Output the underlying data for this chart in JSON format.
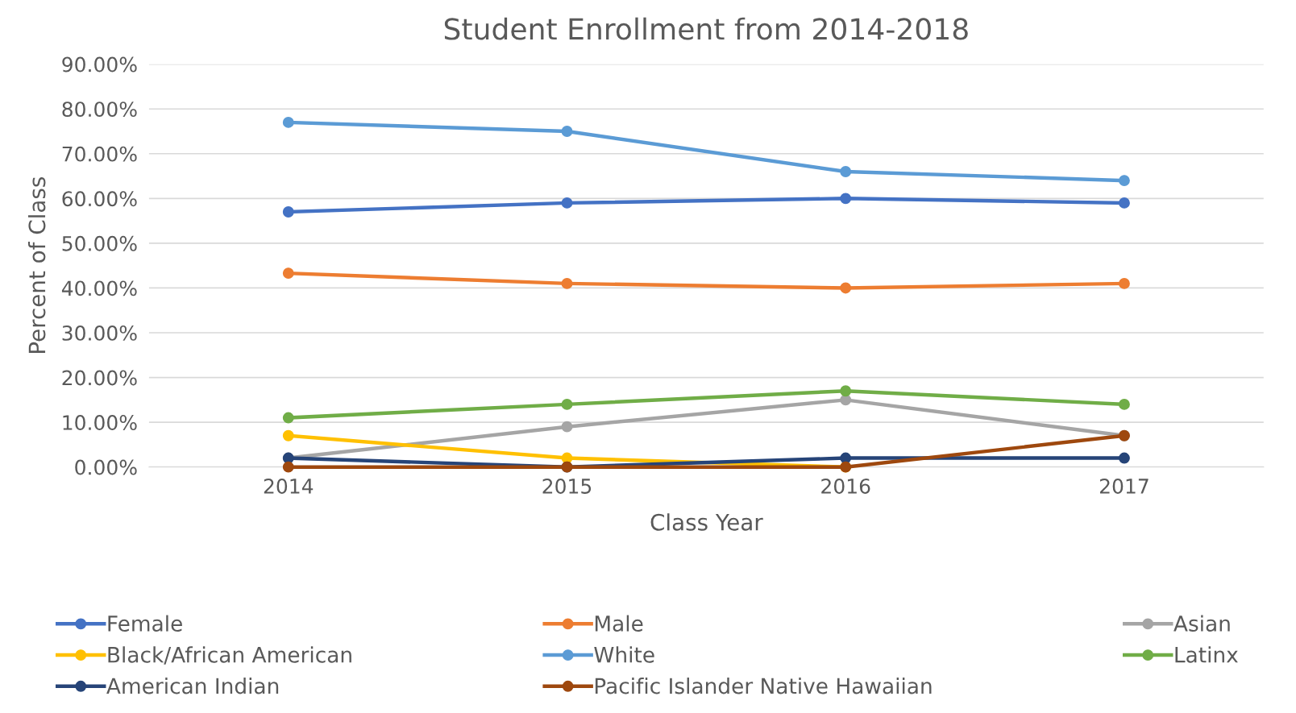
{
  "chart_data": {
    "type": "line",
    "title": "Student Enrollment from 2014-2018",
    "xlabel": "Class Year",
    "ylabel": "Percent of Class",
    "categories": [
      "2014",
      "2015",
      "2016",
      "2017"
    ],
    "series": [
      {
        "name": "Female",
        "color": "#4472c4",
        "values": [
          57,
          59,
          60,
          59
        ]
      },
      {
        "name": "Male",
        "color": "#ed7d31",
        "values": [
          43.3,
          41,
          40,
          41
        ]
      },
      {
        "name": "Asian",
        "color": "#a5a5a5",
        "values": [
          2,
          9,
          15,
          7
        ]
      },
      {
        "name": "Black/African American",
        "color": "#ffc000",
        "values": [
          7,
          2,
          0,
          null
        ]
      },
      {
        "name": "White",
        "color": "#5b9bd5",
        "values": [
          77,
          75,
          66,
          64
        ]
      },
      {
        "name": "Latinx",
        "color": "#70ad47",
        "values": [
          11,
          14,
          17,
          14
        ]
      },
      {
        "name": "American Indian",
        "color": "#264478",
        "values": [
          2,
          0,
          2,
          2
        ]
      },
      {
        "name": "Pacific Islander Native Hawaiian",
        "color": "#9e480e",
        "values": [
          0,
          0,
          0,
          7
        ]
      }
    ],
    "ylim": [
      0,
      90
    ],
    "yticks": [
      {
        "value": 0,
        "label": "0.00%"
      },
      {
        "value": 10,
        "label": "10.00%"
      },
      {
        "value": 20,
        "label": "20.00%"
      },
      {
        "value": 30,
        "label": "30.00%"
      },
      {
        "value": 40,
        "label": "40.00%"
      },
      {
        "value": 50,
        "label": "50.00%"
      },
      {
        "value": 60,
        "label": "60.00%"
      },
      {
        "value": 70,
        "label": "70.00%"
      },
      {
        "value": 80,
        "label": "80.00%"
      },
      {
        "value": 90,
        "label": "90.00%"
      }
    ],
    "grid": "y",
    "legend": "bottom",
    "marker": "circle",
    "line_style": "solid"
  }
}
